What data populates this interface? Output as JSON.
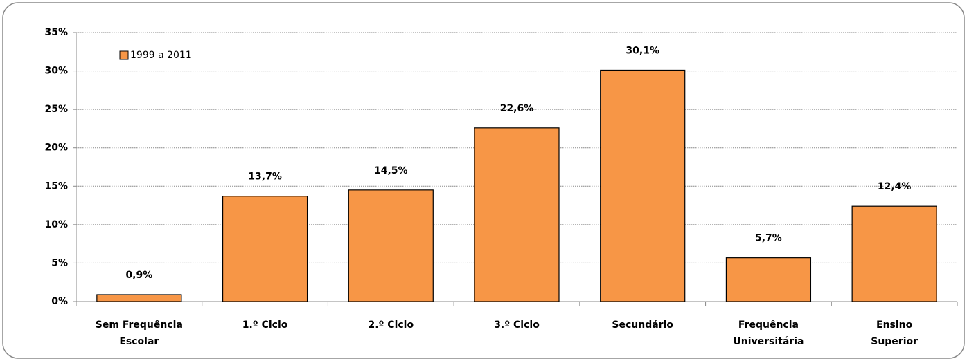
{
  "chart_data": {
    "type": "bar",
    "categories": [
      [
        "Sem Frequência",
        "Escolar"
      ],
      [
        "1.º Ciclo"
      ],
      [
        "2.º Ciclo"
      ],
      [
        "3.º Ciclo"
      ],
      [
        "Secundário"
      ],
      [
        "Frequência",
        "Universitária"
      ],
      [
        "Ensino",
        "Superior"
      ]
    ],
    "series": [
      {
        "name": "1999 a 2011",
        "color": "#f79646",
        "values": [
          0.9,
          13.7,
          14.5,
          22.6,
          30.1,
          5.7,
          12.4
        ],
        "value_labels": [
          "0,9%",
          "13,7%",
          "14,5%",
          "22,6%",
          "30,1%",
          "5,7%",
          "12,4%"
        ]
      }
    ],
    "ylim": [
      0,
      35
    ],
    "yticks": [
      {
        "value": 0,
        "label": "0%"
      },
      {
        "value": 5,
        "label": "5%"
      },
      {
        "value": 10,
        "label": "10%"
      },
      {
        "value": 15,
        "label": "15%"
      },
      {
        "value": 20,
        "label": "20%"
      },
      {
        "value": 25,
        "label": "25%"
      },
      {
        "value": 30,
        "label": "30%"
      },
      {
        "value": 35,
        "label": "35%"
      }
    ],
    "grid": true,
    "legend": "top-left"
  }
}
